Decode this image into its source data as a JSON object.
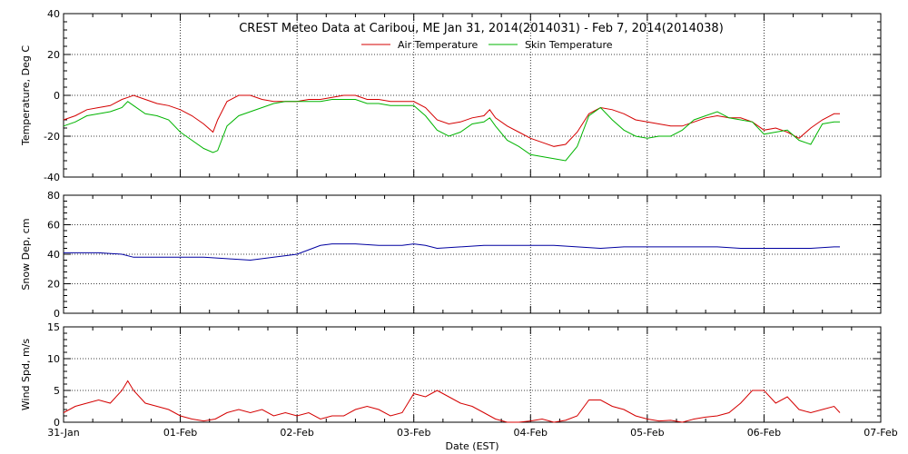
{
  "chart_data": [
    {
      "type": "line",
      "title": "CREST Meteo Data at Caribou, ME   Jan 31, 2014(2014031) - Feb  7, 2014(2014038)",
      "ylabel": "Temperature, Deg C",
      "ylim": [
        -40,
        40
      ],
      "yticks": [
        -40,
        -20,
        0,
        20,
        40
      ],
      "xlim": [
        0,
        7
      ],
      "grid": true,
      "legend": "top-center",
      "series": [
        {
          "name": "Air Temperature",
          "color": "#d40000",
          "x": [
            0,
            0.1,
            0.2,
            0.3,
            0.4,
            0.5,
            0.55,
            0.6,
            0.7,
            0.8,
            0.9,
            1.0,
            1.1,
            1.2,
            1.28,
            1.32,
            1.4,
            1.5,
            1.6,
            1.7,
            1.8,
            1.9,
            2.0,
            2.1,
            2.2,
            2.3,
            2.4,
            2.5,
            2.6,
            2.7,
            2.8,
            2.9,
            3.0,
            3.1,
            3.2,
            3.3,
            3.4,
            3.5,
            3.6,
            3.65,
            3.7,
            3.8,
            3.9,
            4.0,
            4.1,
            4.2,
            4.3,
            4.4,
            4.5,
            4.6,
            4.7,
            4.8,
            4.9,
            5.0,
            5.1,
            5.2,
            5.3,
            5.4,
            5.5,
            5.6,
            5.7,
            5.8,
            5.9,
            6.0,
            6.1,
            6.2,
            6.3,
            6.4,
            6.5,
            6.6,
            6.65
          ],
          "values": [
            -12,
            -10,
            -7,
            -6,
            -5,
            -2,
            -1,
            0,
            -2,
            -4,
            -5,
            -7,
            -10,
            -14,
            -18,
            -12,
            -3,
            0,
            0,
            -2,
            -3,
            -3,
            -3,
            -2,
            -2,
            -1,
            0,
            0,
            -2,
            -2,
            -3,
            -3,
            -3,
            -6,
            -12,
            -14,
            -13,
            -11,
            -10,
            -7,
            -11,
            -15,
            -18,
            -21,
            -23,
            -25,
            -24,
            -18,
            -9,
            -6,
            -7,
            -9,
            -12,
            -13,
            -14,
            -15,
            -15,
            -13,
            -11,
            -10,
            -11,
            -11,
            -13,
            -17,
            -16,
            -18,
            -21,
            -16,
            -12,
            -9,
            -9
          ]
        },
        {
          "name": "Skin Temperature",
          "color": "#00b400",
          "x": [
            0,
            0.1,
            0.2,
            0.3,
            0.4,
            0.5,
            0.55,
            0.6,
            0.7,
            0.8,
            0.9,
            1.0,
            1.1,
            1.2,
            1.28,
            1.32,
            1.4,
            1.5,
            1.6,
            1.7,
            1.8,
            1.9,
            2.0,
            2.1,
            2.2,
            2.3,
            2.4,
            2.5,
            2.6,
            2.7,
            2.8,
            2.9,
            3.0,
            3.1,
            3.2,
            3.3,
            3.4,
            3.5,
            3.6,
            3.65,
            3.7,
            3.8,
            3.9,
            4.0,
            4.1,
            4.2,
            4.3,
            4.4,
            4.5,
            4.6,
            4.7,
            4.8,
            4.9,
            5.0,
            5.1,
            5.2,
            5.3,
            5.4,
            5.5,
            5.6,
            5.7,
            5.8,
            5.9,
            6.0,
            6.1,
            6.2,
            6.3,
            6.4,
            6.5,
            6.6,
            6.65
          ],
          "values": [
            -15,
            -13,
            -10,
            -9,
            -8,
            -6,
            -3,
            -5,
            -9,
            -10,
            -12,
            -18,
            -22,
            -26,
            -28,
            -27,
            -15,
            -10,
            -8,
            -6,
            -4,
            -3,
            -3,
            -3,
            -3,
            -2,
            -2,
            -2,
            -4,
            -4,
            -5,
            -5,
            -5,
            -10,
            -17,
            -20,
            -18,
            -14,
            -13,
            -11,
            -15,
            -22,
            -25,
            -29,
            -30,
            -31,
            -32,
            -25,
            -10,
            -6,
            -12,
            -17,
            -20,
            -21,
            -20,
            -20,
            -17,
            -12,
            -10,
            -8,
            -11,
            -12,
            -13,
            -19,
            -18,
            -17,
            -22,
            -24,
            -14,
            -13,
            -13
          ]
        }
      ]
    },
    {
      "type": "line",
      "ylabel": "Snow Dep, cm",
      "ylim": [
        0,
        80
      ],
      "yticks": [
        0,
        20,
        40,
        60,
        80
      ],
      "xlim": [
        0,
        7
      ],
      "grid": true,
      "series": [
        {
          "color": "#0000a0",
          "x": [
            0,
            0.3,
            0.5,
            0.6,
            0.8,
            1.0,
            1.2,
            1.4,
            1.6,
            1.8,
            1.9,
            2.0,
            2.1,
            2.2,
            2.3,
            2.5,
            2.7,
            2.9,
            3.0,
            3.1,
            3.2,
            3.4,
            3.6,
            3.8,
            4.0,
            4.2,
            4.4,
            4.6,
            4.8,
            5.0,
            5.2,
            5.4,
            5.6,
            5.8,
            6.0,
            6.2,
            6.4,
            6.6,
            6.65
          ],
          "values": [
            41,
            41,
            40,
            38,
            38,
            38,
            38,
            37,
            36,
            38,
            39,
            40,
            43,
            46,
            47,
            47,
            46,
            46,
            47,
            46,
            44,
            45,
            46,
            46,
            46,
            46,
            45,
            44,
            45,
            45,
            45,
            45,
            45,
            44,
            44,
            44,
            44,
            45,
            45
          ]
        }
      ]
    },
    {
      "type": "line",
      "ylabel": "Wind Spd, m/s",
      "ylim": [
        0,
        15
      ],
      "yticks": [
        0,
        5,
        10,
        15
      ],
      "xlim": [
        0,
        7
      ],
      "xlabel": "Date (EST)",
      "xticks": [
        "31-Jan",
        "01-Feb",
        "02-Feb",
        "03-Feb",
        "04-Feb",
        "05-Feb",
        "06-Feb",
        "07-Feb"
      ],
      "grid": true,
      "series": [
        {
          "color": "#d40000",
          "x": [
            0,
            0.1,
            0.2,
            0.3,
            0.4,
            0.5,
            0.55,
            0.6,
            0.7,
            0.8,
            0.9,
            1.0,
            1.1,
            1.2,
            1.3,
            1.4,
            1.5,
            1.6,
            1.7,
            1.8,
            1.9,
            2.0,
            2.1,
            2.2,
            2.3,
            2.4,
            2.5,
            2.6,
            2.7,
            2.8,
            2.9,
            3.0,
            3.1,
            3.2,
            3.3,
            3.4,
            3.5,
            3.6,
            3.7,
            3.8,
            3.9,
            4.0,
            4.1,
            4.2,
            4.3,
            4.4,
            4.5,
            4.6,
            4.7,
            4.8,
            4.9,
            5.0,
            5.1,
            5.2,
            5.3,
            5.4,
            5.5,
            5.6,
            5.7,
            5.8,
            5.9,
            6.0,
            6.1,
            6.2,
            6.3,
            6.4,
            6.5,
            6.6,
            6.65
          ],
          "values": [
            1.5,
            2.5,
            3,
            3.5,
            3,
            5,
            6.5,
            5,
            3,
            2.5,
            2,
            1,
            0.5,
            0.2,
            0.5,
            1.5,
            2,
            1.5,
            2,
            1,
            1.5,
            1,
            1.5,
            0.5,
            1,
            1,
            2,
            2.5,
            2,
            1,
            1.5,
            4.5,
            4,
            5,
            4,
            3,
            2.5,
            1.5,
            0.5,
            0,
            0,
            0.2,
            0.5,
            0,
            0.3,
            1,
            3.5,
            3.5,
            2.5,
            2,
            1,
            0.5,
            0.2,
            0.3,
            0,
            0.5,
            0.8,
            1,
            1.5,
            3,
            5,
            5,
            3,
            4,
            2,
            1.5,
            2,
            2.5,
            1.5
          ]
        }
      ]
    }
  ]
}
